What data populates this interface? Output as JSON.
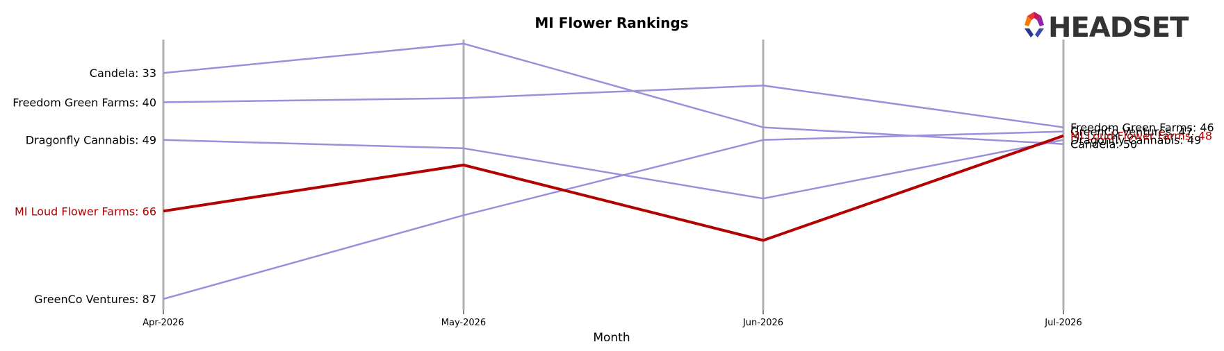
{
  "chart_data": {
    "type": "line",
    "title": "MI Flower Rankings",
    "xlabel": "Month",
    "ylabel": "",
    "categories": [
      "Apr-2026",
      "May-2026",
      "Jun-2026",
      "Jul-2026"
    ],
    "y_inverted": true,
    "ylim": [
      28,
      88
    ],
    "grid": "vertical lines at each month",
    "highlight_color": "#b30000",
    "series_color": "#9b8fdb",
    "series": [
      {
        "name": "Candela",
        "values": [
          33,
          26,
          46,
          50
        ],
        "highlight": false,
        "start_label": "Candela: 33",
        "end_label": "Candela: 50"
      },
      {
        "name": "Freedom Green Farms",
        "values": [
          40,
          39,
          36,
          46
        ],
        "highlight": false,
        "start_label": "Freedom Green Farms: 40",
        "end_label": "Freedom Green Farms: 46"
      },
      {
        "name": "Dragonfly Cannabis",
        "values": [
          49,
          51,
          63,
          49
        ],
        "highlight": false,
        "start_label": "Dragonfly Cannabis: 49",
        "end_label": "Dragonfly Cannabis: 49"
      },
      {
        "name": "GreenCo Ventures",
        "values": [
          87,
          67,
          49,
          47
        ],
        "highlight": false,
        "start_label": "GreenCo Ventures: 87",
        "end_label": "GreenCo Ventures: 47"
      },
      {
        "name": "MI Loud Flower Farms",
        "values": [
          66,
          55,
          73,
          48
        ],
        "highlight": true,
        "start_label": "MI Loud Flower Farms: 66",
        "end_label": "MI Loud Flower Farms: 48"
      }
    ]
  },
  "logo": {
    "text": "HEADSET"
  }
}
